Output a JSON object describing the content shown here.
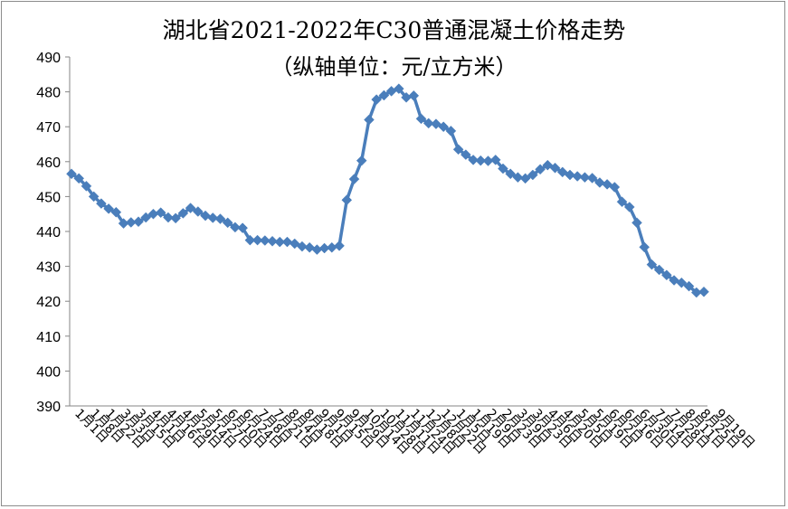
{
  "chart_data": {
    "type": "line",
    "title": "湖北省2021-2022年C30普通混凝土价格走势",
    "subtitle": "（纵轴单位：元/立方米）",
    "ylim": [
      390,
      490
    ],
    "yticks": [
      390,
      400,
      410,
      420,
      430,
      440,
      450,
      460,
      470,
      480,
      490
    ],
    "xtick_labels": [
      "1月1日",
      "1月8日",
      "1月22日",
      "3月3日",
      "3月15日",
      "4月1日",
      "4月16日",
      "4月29日",
      "5月14日",
      "5月27日",
      "6月10日",
      "6月24日",
      "7月8日",
      "7月21日",
      "8月4日",
      "8月18日",
      "9月1日",
      "9月15日",
      "9月29日",
      "10月14日",
      "10月28日",
      "11月11日",
      "11月24日",
      "12月8日",
      "12月22日",
      "1月5日",
      "1月19日",
      "2月9日",
      "2月23日",
      "3月9日",
      "3月23日",
      "4月6日",
      "4月20日",
      "5月5日",
      "5月19日",
      "6月2日",
      "6月16日",
      "6月30日",
      "7月14日",
      "7月28日",
      "8月11日",
      "8月25日",
      "9月19日"
    ],
    "grid": false,
    "legend": "none",
    "series": [
      {
        "color": "#4a7ebb",
        "values": [
          456.5,
          455.2,
          453.0,
          450.0,
          448.0,
          446.5,
          445.5,
          442.3,
          442.6,
          442.8,
          444.0,
          445.0,
          445.4,
          444.0,
          443.8,
          445.2,
          446.7,
          445.7,
          444.5,
          443.9,
          443.6,
          442.5,
          441.2,
          441.0,
          437.5,
          437.5,
          437.4,
          437.2,
          437.0,
          437.0,
          436.5,
          435.7,
          435.4,
          434.8,
          435.2,
          435.4,
          435.9,
          449.0,
          455.0,
          460.3,
          472.0,
          477.8,
          479.0,
          480.2,
          480.9,
          478.4,
          478.9,
          472.3,
          471.0,
          470.8,
          470.0,
          468.8,
          463.5,
          462.0,
          460.5,
          460.3,
          460.2,
          460.5,
          458.0,
          456.5,
          455.5,
          455.2,
          456.2,
          457.8,
          459.0,
          458.2,
          457.0,
          456.2,
          455.8,
          455.5,
          455.3,
          454.0,
          453.5,
          452.7,
          448.5,
          447.0,
          442.5,
          435.5,
          430.5,
          429.0,
          427.5,
          426.0,
          425.3,
          424.3,
          422.5,
          422.7
        ]
      }
    ]
  }
}
